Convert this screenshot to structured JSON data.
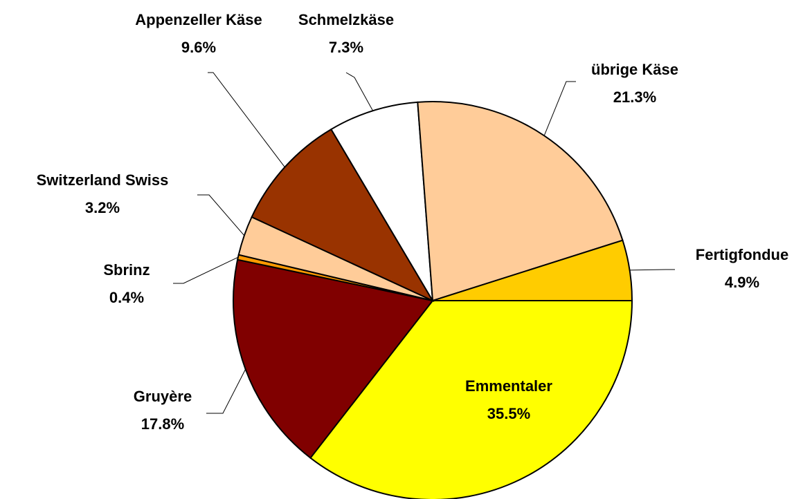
{
  "chart_data": {
    "type": "pie",
    "categories": [
      "Emmentaler",
      "Gruyère",
      "Sbrinz",
      "Switzerland Swiss",
      "Appenzeller Käse",
      "Schmelzkäse",
      "übrige Käse",
      "Fertigfondue"
    ],
    "values": [
      35.5,
      17.8,
      0.4,
      3.2,
      9.6,
      7.3,
      21.3,
      4.9
    ],
    "value_labels": [
      "35.5%",
      "17.8%",
      "0.4%",
      "3.2%",
      "9.6%",
      "7.3%",
      "21.3%",
      "4.9%"
    ],
    "colors": [
      "#FFFF00",
      "#800000",
      "#FF9900",
      "#FFCC99",
      "#993300",
      "#FFFFFF",
      "#FFCC99",
      "#FFCC00"
    ]
  }
}
